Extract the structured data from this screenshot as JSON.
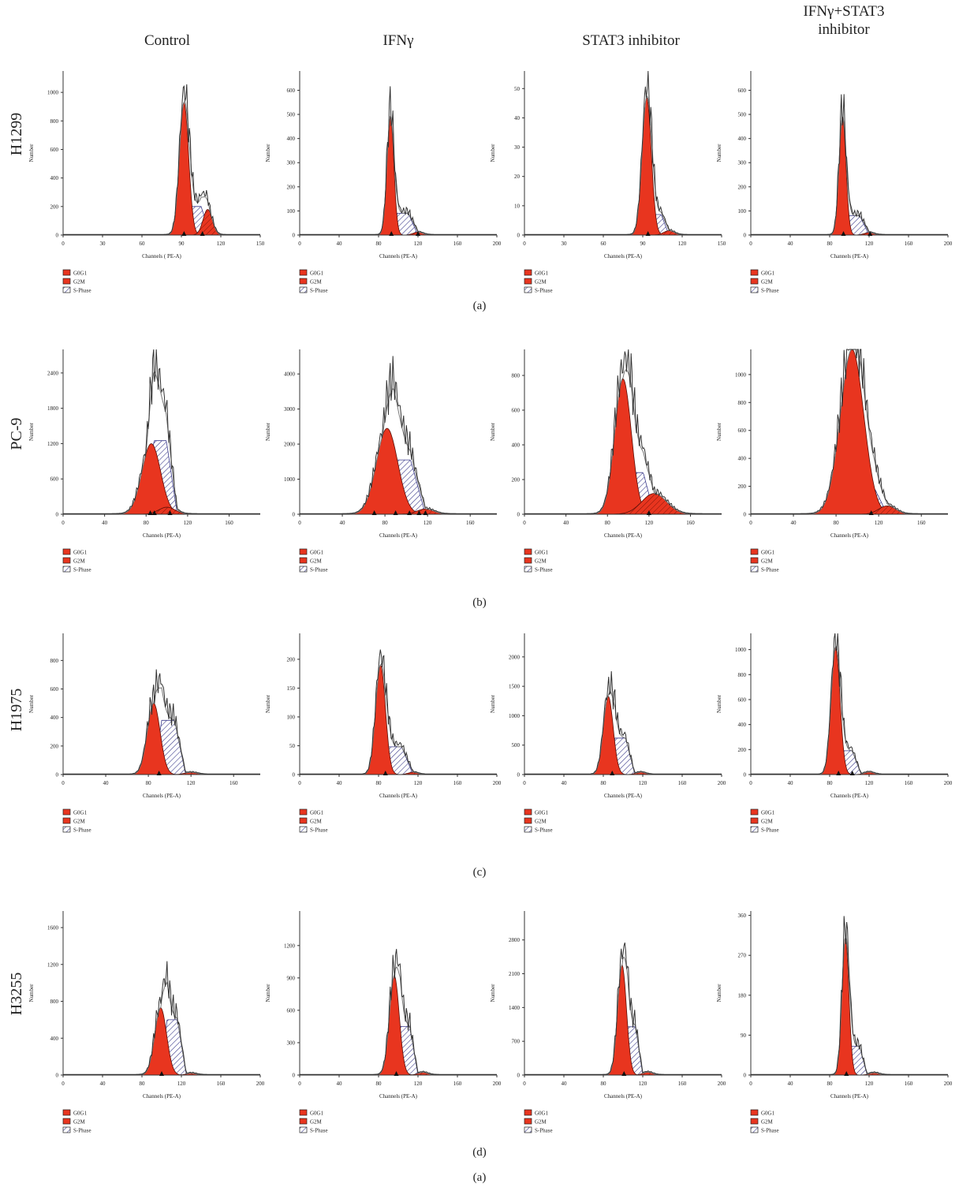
{
  "figure": {
    "columns": [
      "Control",
      "IFNγ",
      "STAT3 inhibitor",
      "IFNγ+STAT3\ninhibitor"
    ],
    "bottom_caption": "(a)",
    "legend": [
      "G0G1",
      "G2M",
      "S-Phase"
    ],
    "colors": {
      "g0g1": "#e8351f",
      "g2m": "#e8351f",
      "sphase_stroke": "#3c3c8c",
      "trace": "#333333",
      "fit": "#777777"
    }
  },
  "chart_data": [
    {
      "type": "area",
      "row": "H1299",
      "column": "Control",
      "panel": "(a)",
      "xlabel": "Channels ( PE-A)",
      "ylabel": "Number",
      "xlim": [
        0,
        150
      ],
      "ylim": [
        0,
        1150
      ],
      "xticks": [
        0,
        30,
        60,
        90,
        120,
        150
      ],
      "yticks": [
        0,
        200,
        400,
        600,
        800,
        1000
      ],
      "g0g1": {
        "mean": 92,
        "sd": 3.5,
        "peak": 930
      },
      "g2m": {
        "mean": 110,
        "sd": 3.5,
        "peak": 180
      },
      "sphase": {
        "start": 92,
        "end": 112,
        "height": 200
      },
      "markers": [
        92,
        106
      ]
    },
    {
      "type": "area",
      "row": "H1299",
      "column": "IFNγ",
      "panel": "(a)",
      "xlabel": "Channels (PE-A)",
      "ylabel": "Number",
      "xlim": [
        0,
        200
      ],
      "ylim": [
        0,
        680
      ],
      "xticks": [
        0,
        40,
        80,
        120,
        160,
        200
      ],
      "yticks": [
        0,
        100,
        200,
        300,
        400,
        500,
        600
      ],
      "g0g1": {
        "mean": 92,
        "sd": 3.5,
        "peak": 490
      },
      "g2m": {
        "mean": 120,
        "sd": 5,
        "peak": 12
      },
      "sphase": {
        "start": 92,
        "end": 120,
        "height": 90
      },
      "markers": [
        93,
        120
      ]
    },
    {
      "type": "area",
      "row": "H1299",
      "column": "STAT3 inhibitor",
      "panel": "(a)",
      "xlabel": "Channels (PE-A)",
      "ylabel": "Number",
      "xlim": [
        0,
        150
      ],
      "ylim": [
        0,
        56
      ],
      "xticks": [
        0,
        30,
        60,
        90,
        120,
        150
      ],
      "yticks": [
        0,
        10,
        20,
        30,
        40,
        50
      ],
      "g0g1": {
        "mean": 93,
        "sd": 3.5,
        "peak": 47
      },
      "g2m": {
        "mean": 110,
        "sd": 4,
        "peak": 1.5
      },
      "sphase": {
        "start": 93,
        "end": 110,
        "height": 7
      },
      "markers": [
        94
      ]
    },
    {
      "type": "area",
      "row": "H1299",
      "column": "IFNγ+STAT3 inhibitor",
      "panel": "(a)",
      "xlabel": "Channels (PE-A)",
      "ylabel": "Number",
      "xlim": [
        0,
        200
      ],
      "ylim": [
        0,
        680
      ],
      "xticks": [
        0,
        40,
        80,
        120,
        160,
        200
      ],
      "yticks": [
        0,
        100,
        200,
        300,
        400,
        500,
        600
      ],
      "g0g1": {
        "mean": 93,
        "sd": 3.5,
        "peak": 490
      },
      "g2m": {
        "mean": 120,
        "sd": 5,
        "peak": 10
      },
      "sphase": {
        "start": 93,
        "end": 120,
        "height": 80
      },
      "markers": [
        94,
        121
      ]
    },
    {
      "type": "area",
      "row": "PC-9",
      "column": "Control",
      "panel": "(b)",
      "xlabel": "Channels (PE-A)",
      "ylabel": "Number",
      "xlim": [
        0,
        190
      ],
      "ylim": [
        0,
        2800
      ],
      "xticks": [
        0,
        40,
        80,
        120,
        160
      ],
      "yticks": [
        0,
        600,
        1200,
        1800,
        2400
      ],
      "g0g1": {
        "mean": 85,
        "sd": 9,
        "peak": 1200
      },
      "g2m": {
        "mean": 100,
        "sd": 8,
        "peak": 120
      },
      "sphase": {
        "start": 80,
        "end": 110,
        "height": 1250
      },
      "markers": [
        84,
        88,
        103
      ]
    },
    {
      "type": "area",
      "row": "PC-9",
      "column": "IFNγ",
      "panel": "(b)",
      "xlabel": "Channels (PE-A)",
      "ylabel": "Number",
      "xlim": [
        0,
        185
      ],
      "ylim": [
        0,
        4700
      ],
      "xticks": [
        0,
        40,
        80,
        120,
        160
      ],
      "yticks": [
        0,
        1000,
        2000,
        3000,
        4000
      ],
      "g0g1": {
        "mean": 82,
        "sd": 10,
        "peak": 2450
      },
      "g2m": {
        "mean": 118,
        "sd": 8,
        "peak": 150
      },
      "sphase": {
        "start": 78,
        "end": 118,
        "height": 1550
      },
      "markers": [
        70,
        90,
        103,
        112,
        118
      ]
    },
    {
      "type": "area",
      "row": "PC-9",
      "column": "STAT3 inhibitor",
      "panel": "(b)",
      "xlabel": "Channels (PE-A)",
      "ylabel": "Number",
      "xlim": [
        0,
        190
      ],
      "ylim": [
        0,
        950
      ],
      "xticks": [
        0,
        40,
        80,
        120,
        160
      ],
      "yticks": [
        0,
        200,
        400,
        600,
        800
      ],
      "g0g1": {
        "mean": 95,
        "sd": 8,
        "peak": 780
      },
      "g2m": {
        "mean": 125,
        "sd": 12,
        "peak": 120
      },
      "sphase": {
        "start": 95,
        "end": 125,
        "height": 240
      },
      "markers": [
        120
      ]
    },
    {
      "type": "area",
      "row": "PC-9",
      "column": "IFNγ+STAT3 inhibitor",
      "panel": "(b)",
      "xlabel": "Channels (PE-A)",
      "ylabel": "Number",
      "xlim": [
        0,
        185
      ],
      "ylim": [
        0,
        1180
      ],
      "xticks": [
        0,
        40,
        80,
        120,
        160
      ],
      "yticks": [
        0,
        200,
        400,
        600,
        800,
        1000
      ],
      "g0g1": {
        "mean": 95,
        "sd": 11,
        "peak": 1180
      },
      "g2m": {
        "mean": 128,
        "sd": 8,
        "peak": 60
      },
      "sphase": {
        "start": 95,
        "end": 128,
        "height": 180
      },
      "markers": [
        113
      ]
    },
    {
      "type": "area",
      "row": "H1975",
      "column": "Control",
      "panel": "(c)",
      "xlabel": "Channels (PE-A)",
      "ylabel": "Number",
      "xlim": [
        0,
        185
      ],
      "ylim": [
        0,
        990
      ],
      "xticks": [
        0,
        40,
        80,
        120,
        160
      ],
      "yticks": [
        0,
        200,
        400,
        600,
        800
      ],
      "g0g1": {
        "mean": 85,
        "sd": 6,
        "peak": 500
      },
      "g2m": {
        "mean": 120,
        "sd": 6,
        "peak": 15
      },
      "sphase": {
        "start": 85,
        "end": 115,
        "height": 380
      },
      "markers": [
        90
      ]
    },
    {
      "type": "area",
      "row": "H1975",
      "column": "IFNγ",
      "panel": "(c)",
      "xlabel": "Channels (PE-A)",
      "ylabel": "Number",
      "xlim": [
        0,
        200
      ],
      "ylim": [
        0,
        245
      ],
      "xticks": [
        0,
        40,
        80,
        120,
        160,
        200
      ],
      "yticks": [
        0,
        50,
        100,
        150,
        200
      ],
      "g0g1": {
        "mean": 82,
        "sd": 5,
        "peak": 190
      },
      "g2m": {
        "mean": 115,
        "sd": 5,
        "peak": 4
      },
      "sphase": {
        "start": 82,
        "end": 115,
        "height": 48
      },
      "markers": [
        87
      ]
    },
    {
      "type": "area",
      "row": "H1975",
      "column": "STAT3 inhibitor",
      "panel": "(c)",
      "xlabel": "Channels (PE-A)",
      "ylabel": "Number",
      "xlim": [
        0,
        200
      ],
      "ylim": [
        0,
        2400
      ],
      "xticks": [
        0,
        40,
        80,
        120,
        160,
        200
      ],
      "yticks": [
        0,
        500,
        1000,
        1500,
        2000
      ],
      "g0g1": {
        "mean": 85,
        "sd": 5,
        "peak": 1330
      },
      "g2m": {
        "mean": 118,
        "sd": 5,
        "peak": 40
      },
      "sphase": {
        "start": 85,
        "end": 112,
        "height": 620
      },
      "markers": [
        89
      ]
    },
    {
      "type": "area",
      "row": "H1975",
      "column": "IFNγ+STAT3 inhibitor",
      "panel": "(c)",
      "xlabel": "Channels (PE-A)",
      "ylabel": "Number",
      "xlim": [
        0,
        200
      ],
      "ylim": [
        0,
        1130
      ],
      "xticks": [
        0,
        40,
        80,
        120,
        160,
        200
      ],
      "yticks": [
        0,
        200,
        400,
        600,
        800,
        1000
      ],
      "g0g1": {
        "mean": 86,
        "sd": 4.5,
        "peak": 1020
      },
      "g2m": {
        "mean": 120,
        "sd": 5,
        "peak": 20
      },
      "sphase": {
        "start": 86,
        "end": 112,
        "height": 190
      },
      "markers": [
        89,
        103
      ]
    },
    {
      "type": "area",
      "row": "H3255",
      "column": "Control",
      "panel": "(d)",
      "xlabel": "Channels (PE-A)",
      "ylabel": "Number",
      "xlim": [
        0,
        200
      ],
      "ylim": [
        0,
        1780
      ],
      "xticks": [
        0,
        40,
        80,
        120,
        160,
        200
      ],
      "yticks": [
        0,
        400,
        800,
        1200,
        1600
      ],
      "g0g1": {
        "mean": 99,
        "sd": 6,
        "peak": 730
      },
      "g2m": {
        "mean": 130,
        "sd": 5,
        "peak": 20
      },
      "sphase": {
        "start": 99,
        "end": 125,
        "height": 600
      },
      "markers": [
        100
      ]
    },
    {
      "type": "area",
      "row": "H3255",
      "column": "IFNγ",
      "panel": "(d)",
      "xlabel": "Channels (PE-A)",
      "ylabel": "Number",
      "xlim": [
        0,
        200
      ],
      "ylim": [
        0,
        1520
      ],
      "xticks": [
        0,
        40,
        80,
        120,
        160,
        200
      ],
      "yticks": [
        0,
        300,
        600,
        900,
        1200
      ],
      "g0g1": {
        "mean": 96,
        "sd": 5,
        "peak": 920
      },
      "g2m": {
        "mean": 125,
        "sd": 5,
        "peak": 25
      },
      "sphase": {
        "start": 96,
        "end": 120,
        "height": 450
      },
      "markers": [
        98
      ]
    },
    {
      "type": "area",
      "row": "H3255",
      "column": "STAT3 inhibitor",
      "panel": "(d)",
      "xlabel": "Channels (PE-A)",
      "ylabel": "Number",
      "xlim": [
        0,
        200
      ],
      "ylim": [
        0,
        3400
      ],
      "xticks": [
        0,
        40,
        80,
        120,
        160,
        200
      ],
      "yticks": [
        0,
        700,
        1400,
        2100,
        2800
      ],
      "g0g1": {
        "mean": 99,
        "sd": 4.5,
        "peak": 2280
      },
      "g2m": {
        "mean": 125,
        "sd": 5,
        "peak": 60
      },
      "sphase": {
        "start": 99,
        "end": 120,
        "height": 1000
      },
      "markers": [
        101
      ]
    },
    {
      "type": "area",
      "row": "H3255",
      "column": "IFNγ+STAT3 inhibitor",
      "panel": "(d)",
      "xlabel": "Channels (PE-A)",
      "ylabel": "Number",
      "xlim": [
        0,
        200
      ],
      "ylim": [
        0,
        370
      ],
      "xticks": [
        0,
        40,
        80,
        120,
        160,
        200
      ],
      "yticks": [
        0,
        90,
        180,
        270,
        360
      ],
      "g0g1": {
        "mean": 96,
        "sd": 3.5,
        "peak": 310
      },
      "g2m": {
        "mean": 125,
        "sd": 5,
        "peak": 5
      },
      "sphase": {
        "start": 96,
        "end": 118,
        "height": 65
      },
      "markers": [
        97
      ]
    }
  ]
}
